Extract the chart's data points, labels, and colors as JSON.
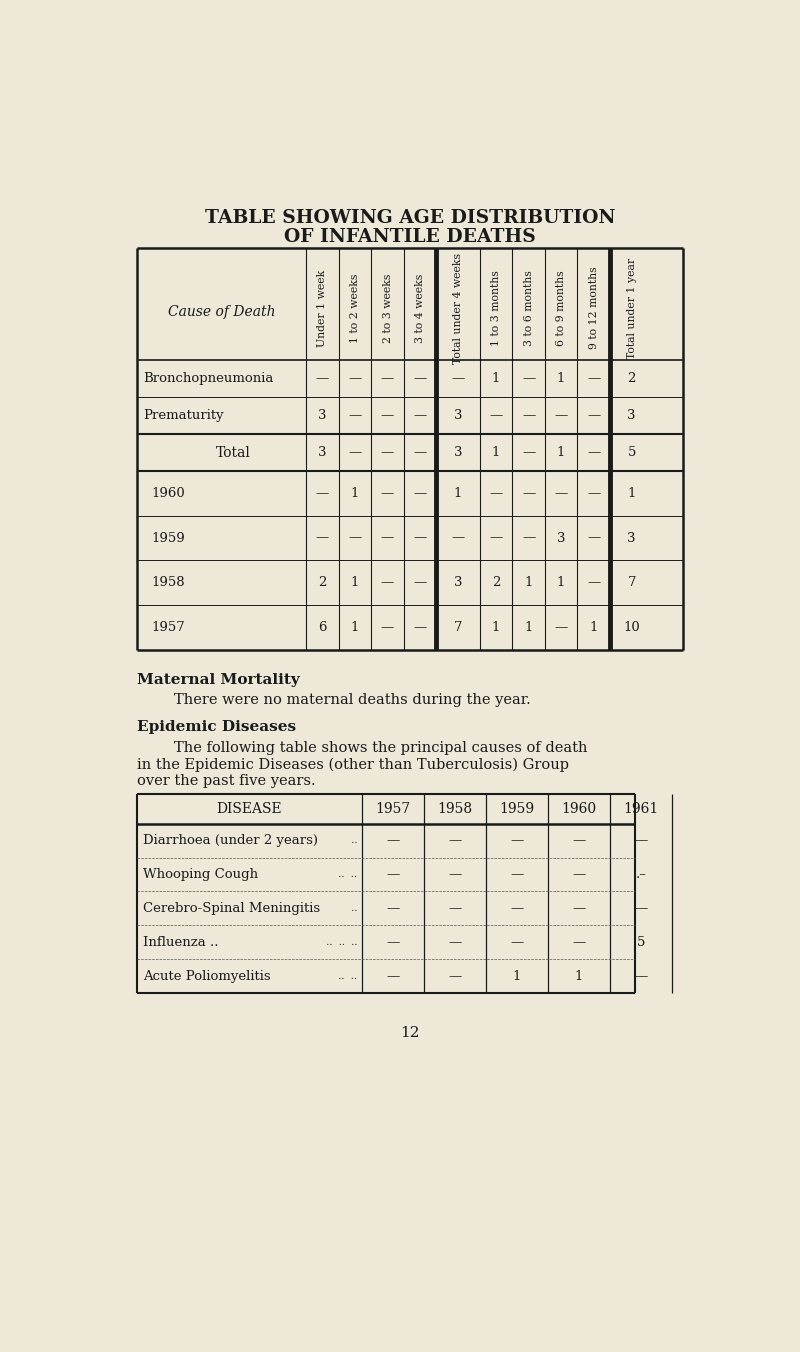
{
  "bg_color": "#ede8d8",
  "title_line1": "TABLE SHOWING AGE DISTRIBUTION",
  "title_line2": "OF INFANTILE DEATHS",
  "table1_col_headers": [
    "Under 1 week",
    "1 to 2 weeks",
    "2 to 3 weeks",
    "3 to 4 weeks",
    "Total under 4 weeks",
    "1 to 3 months",
    "3 to 6 months",
    "6 to 9 months",
    "9 to 12 months",
    "Total under 1 year"
  ],
  "table1_cause_col": "Cause of Death",
  "table1_rows": [
    {
      "label": "Bronchopneumonia",
      "values": [
        "—",
        "—",
        "—",
        "—",
        "—",
        "1",
        "—",
        "1",
        "—",
        "2"
      ]
    },
    {
      "label": "Prematurity",
      "values": [
        "3",
        "—",
        "—",
        "—",
        "3",
        "—",
        "—",
        "—",
        "—",
        "3"
      ]
    }
  ],
  "table1_total_row": {
    "label": "Total",
    "values": [
      "3",
      "—",
      "—",
      "—",
      "3",
      "1",
      "—",
      "1",
      "—",
      "5"
    ]
  },
  "table1_year_rows": [
    {
      "label": "1960",
      "values": [
        "—",
        "1",
        "—",
        "—",
        "1",
        "—",
        "—",
        "—",
        "—",
        "1"
      ]
    },
    {
      "label": "1959",
      "values": [
        "—",
        "—",
        "—",
        "—",
        "—",
        "—",
        "—",
        "3",
        "—",
        "3"
      ]
    },
    {
      "label": "1958",
      "values": [
        "2",
        "1",
        "—",
        "—",
        "3",
        "2",
        "1",
        "1",
        "—",
        "7"
      ]
    },
    {
      "label": "1957",
      "values": [
        "6",
        "1",
        "—",
        "—",
        "7",
        "1",
        "1",
        "—",
        "1",
        "10"
      ]
    }
  ],
  "maternal_title": "Maternal Mortality",
  "maternal_text": "There were no maternal deaths during the year.",
  "epidemic_title": "Epidemic Diseases",
  "epidemic_text1": "        The following table shows the principal causes of death",
  "epidemic_text2": "in the Epidemic Diseases (other than Tuberculosis) Group",
  "epidemic_text3": "over the past five years.",
  "table2_headers": [
    "DISEASE",
    "1957",
    "1958",
    "1959",
    "1960",
    "1961"
  ],
  "table2_rows": [
    {
      "label": "Diarrhoea (under 2 years)",
      "dots": "..",
      "values": [
        "—",
        "—",
        "—",
        "—",
        "—"
      ]
    },
    {
      "label": "Whooping Cough",
      "dots": ".. ..",
      "values": [
        "—",
        "—",
        "—",
        "—",
        ".–"
      ]
    },
    {
      "label": "Cerebro-Spinal Meningitis",
      "dots": "..",
      "values": [
        "—",
        "—",
        "—",
        "—",
        "—"
      ]
    },
    {
      "label": "Influenza ..",
      "dots": ".. .. ..",
      "values": [
        "—",
        "—",
        "—",
        "—",
        "5"
      ]
    },
    {
      "label": "Acute Poliomyelitis",
      "dots": ".. ..",
      "values": [
        "—",
        "—",
        "1",
        "1",
        "—"
      ]
    }
  ],
  "page_number": "12",
  "fig_width": 8.0,
  "fig_height": 13.52,
  "dpi": 100
}
